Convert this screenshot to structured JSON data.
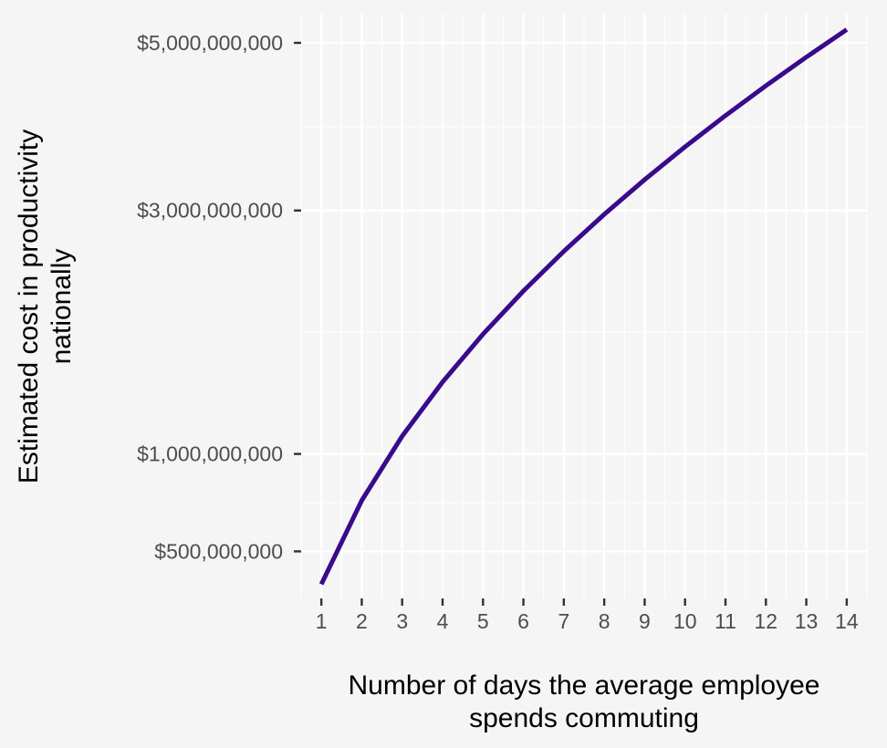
{
  "chart_data": {
    "type": "line",
    "title": "",
    "xlabel": [
      "Number of days the average employee",
      "spends commuting"
    ],
    "ylabel": [
      "Estimated cost in productivity",
      "nationally"
    ],
    "x": [
      1,
      2,
      3,
      4,
      5,
      6,
      7,
      8,
      9,
      10,
      11,
      12,
      13,
      14
    ],
    "series": [
      {
        "values": [
          370000000,
          740000000,
          1110000000,
          1480000000,
          1850000000,
          2220000000,
          2590000000,
          2960000000,
          3330000000,
          3700000000,
          4070000000,
          4440000000,
          4810000000,
          5180000000
        ]
      }
    ],
    "x_ticks": [
      "1",
      "2",
      "3",
      "4",
      "5",
      "6",
      "7",
      "8",
      "9",
      "10",
      "11",
      "12",
      "13",
      "14"
    ],
    "y_ticks": [
      {
        "value": 500000000,
        "label": "$500,000,000"
      },
      {
        "value": 1000000000,
        "label": "$1,000,000,000"
      },
      {
        "value": 3000000000,
        "label": "$3,000,000,000"
      },
      {
        "value": 5000000000,
        "label": "$5,000,000,000"
      }
    ],
    "y_scale": "sqrt",
    "xlim": [
      0.5,
      14.5
    ],
    "ylim": [
      320000000,
      5400000000
    ],
    "grid": true,
    "legend": "none",
    "colors": {
      "line": "#3a0a8c",
      "background": "#f5f5f5",
      "grid": "#ffffff",
      "tick": "#333333"
    }
  }
}
